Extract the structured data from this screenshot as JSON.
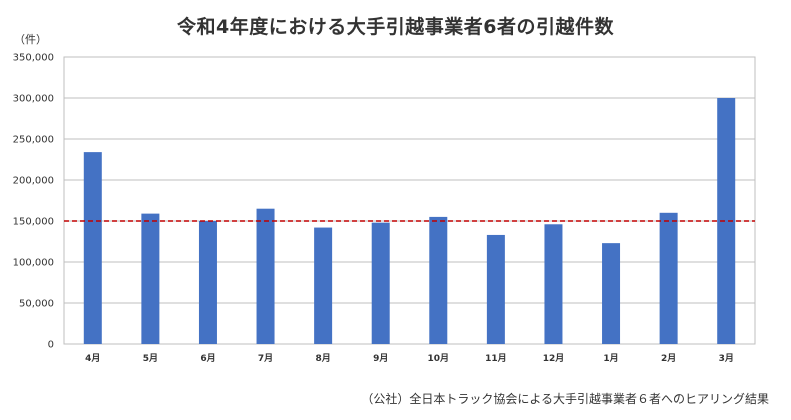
{
  "title": "令和4年度における大手引越事業者6者の引越件数",
  "unit_label": "（件）",
  "source": "（公社）全日本トラック協会による大手引越事業者６者へのヒアリング結果",
  "chart_data": {
    "type": "bar",
    "title": "令和4年度における大手引越事業者6者の引越件数",
    "ylabel": "（件）",
    "xlabel": "",
    "categories": [
      "4月",
      "5月",
      "6月",
      "7月",
      "8月",
      "9月",
      "10月",
      "11月",
      "12月",
      "1月",
      "2月",
      "3月"
    ],
    "values": [
      234000,
      159000,
      150000,
      165000,
      142000,
      148000,
      155000,
      133000,
      146000,
      123000,
      160000,
      300000
    ],
    "ylim": [
      0,
      350000
    ],
    "yticks": [
      "0",
      "50,000",
      "100,000",
      "150,000",
      "200,000",
      "250,000",
      "300,000",
      "350,000"
    ],
    "ytick_values": [
      0,
      50000,
      100000,
      150000,
      200000,
      250000,
      300000,
      350000
    ],
    "reference_line": 150000,
    "bar_color": "#4472C4",
    "reference_color": "#C00000",
    "grid": true,
    "legend": "none"
  }
}
